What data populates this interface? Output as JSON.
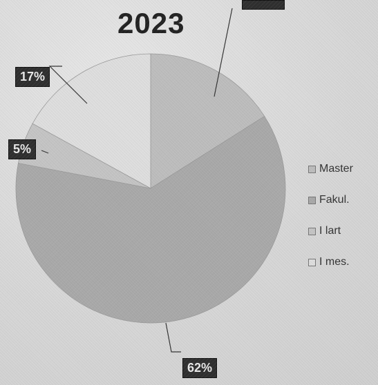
{
  "chart_data": {
    "type": "pie",
    "title": "2023",
    "categories": [
      "Master",
      "Fakul.",
      "I lart",
      "I mes."
    ],
    "values": [
      16,
      62,
      5,
      17
    ],
    "data_labels": [
      "",
      "62%",
      "5%",
      "17%"
    ],
    "legend_position": "right",
    "colors": [
      "#bdbdbd",
      "#a9a9a9",
      "#c4c4c4",
      "#dedede"
    ]
  }
}
